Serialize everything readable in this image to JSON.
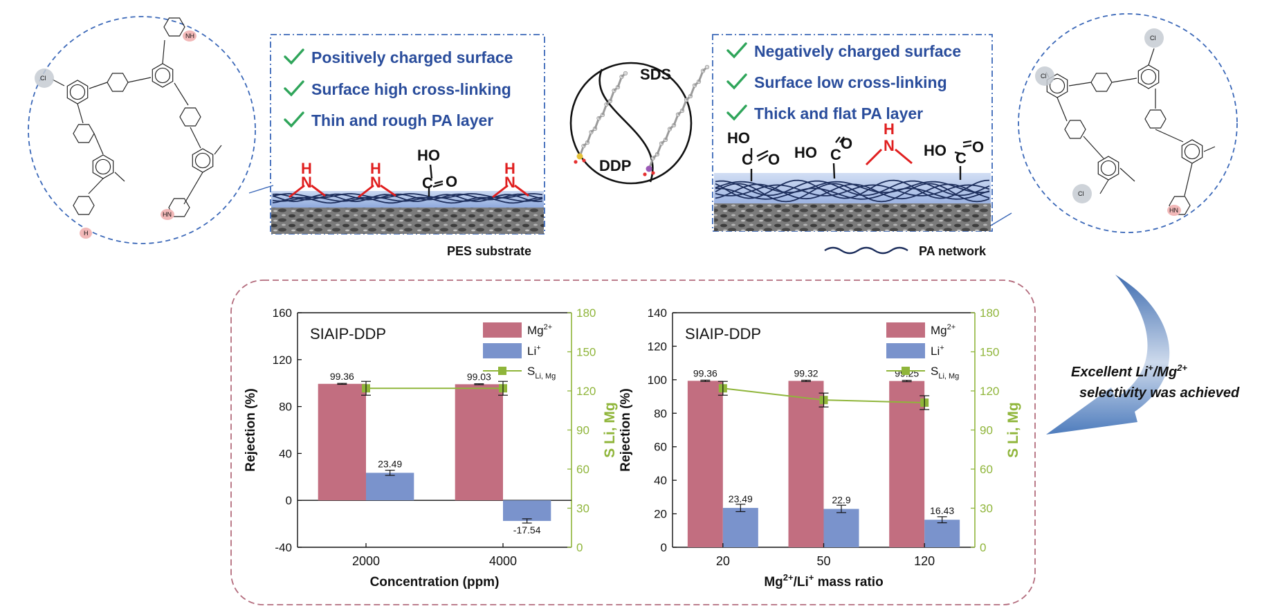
{
  "top": {
    "left_panel": {
      "features": [
        "Positively charged surface",
        "Surface high cross-linking",
        "Thin and rough PA layer"
      ],
      "substrate_label": "PES substrate"
    },
    "right_panel": {
      "features": [
        "Negatively charged surface",
        "Surface low cross-linking",
        "Thick and flat PA layer"
      ],
      "network_label": "PA network"
    },
    "surfactants": {
      "top": "SDS",
      "bottom": "DDP"
    },
    "groups": {
      "amine": "H",
      "amine_n": "N",
      "carboxyl": "HO",
      "carbonyl_o": "O",
      "carbon": "C"
    },
    "molecule_labels": {
      "acyl_chloride_cl": "Cl",
      "amine_nh": "NH",
      "amine_hn": "HN",
      "amine_n": "N",
      "amine_h": "H"
    },
    "selectivity_note": [
      "Excellent  Li",
      "+",
      "/Mg",
      "2+",
      "selectivity was achieved"
    ]
  },
  "legend": {
    "mg": "Mg",
    "mg_sup": "2+",
    "li": "Li",
    "li_sup": "+",
    "s": "S",
    "s_sub": "Li, Mg"
  },
  "chart_data": [
    {
      "type": "bar",
      "title": "SIAIP-DDP",
      "categories": [
        "2000",
        "4000"
      ],
      "series": [
        {
          "name": "Mg2+",
          "values": [
            99.36,
            99.03
          ],
          "color": "#c26e80"
        },
        {
          "name": "Li+",
          "values": [
            23.49,
            -17.54
          ],
          "color": "#7a93cc"
        },
        {
          "name": "S Li, Mg",
          "type": "line",
          "axis": "right",
          "values": [
            122,
            122
          ],
          "color": "#8fb53a"
        }
      ],
      "data_labels": [
        "99.36",
        "99.03",
        "23.49",
        "-17.54"
      ],
      "xlabel": "Concentration (ppm)",
      "ylabel": "Rejection (%)",
      "y2label": "S",
      "y2label_sub": "Li, Mg",
      "ylim": [
        -40,
        160
      ],
      "yticks": [
        "-40",
        "0",
        "40",
        "80",
        "120",
        "160"
      ],
      "y2lim": [
        0,
        180
      ],
      "y2ticks": [
        "0",
        "30",
        "60",
        "90",
        "120",
        "150",
        "180"
      ]
    },
    {
      "type": "bar",
      "title": "SIAIP-DDP",
      "categories": [
        "20",
        "50",
        "120"
      ],
      "series": [
        {
          "name": "Mg2+",
          "values": [
            99.36,
            99.32,
            99.25
          ],
          "color": "#c26e80"
        },
        {
          "name": "Li+",
          "values": [
            23.49,
            22.9,
            16.43
          ],
          "color": "#7a93cc"
        },
        {
          "name": "S Li, Mg",
          "type": "line",
          "axis": "right",
          "values": [
            122,
            113,
            111
          ],
          "color": "#8fb53a"
        }
      ],
      "data_labels": [
        "99.36",
        "99.32",
        "99.25",
        "23.49",
        "22.9",
        "16.43"
      ],
      "xlabel": "Mg",
      "xlabel_parts": [
        "Mg",
        "2+",
        "/Li",
        "+",
        " mass ratio"
      ],
      "ylabel": "Rejection (%)",
      "y2label": "S",
      "y2label_sub": "Li, Mg",
      "ylim": [
        0,
        140
      ],
      "yticks": [
        "0",
        "20",
        "40",
        "60",
        "80",
        "100",
        "120",
        "140"
      ],
      "y2lim": [
        0,
        180
      ],
      "y2ticks": [
        "0",
        "30",
        "60",
        "90",
        "120",
        "150",
        "180"
      ]
    }
  ]
}
